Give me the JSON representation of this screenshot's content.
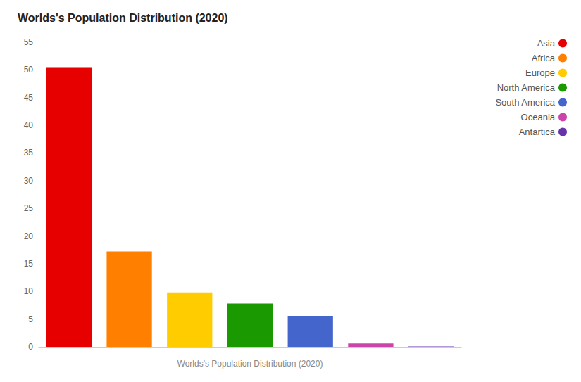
{
  "chart_data": {
    "type": "bar",
    "title": "Worlds's Population Distribution (2020)",
    "xlabel": "Worlds's Population Distribution (2020)",
    "categories": [
      "Asia",
      "Africa",
      "Europe",
      "North America",
      "South America",
      "Oceania",
      "Antartica"
    ],
    "values": [
      50.5,
      17.2,
      9.8,
      7.8,
      5.6,
      0.6,
      0.05
    ],
    "colors": [
      "#e60000",
      "#ff8000",
      "#ffcc00",
      "#1a9900",
      "#4466cc",
      "#cc44aa",
      "#6633aa"
    ],
    "ylim": [
      0,
      55
    ],
    "yticks": [
      0,
      5,
      10,
      15,
      20,
      25,
      30,
      35,
      40,
      45,
      50,
      55
    ],
    "grid": false,
    "legend": "right",
    "tick_labels": "y"
  }
}
